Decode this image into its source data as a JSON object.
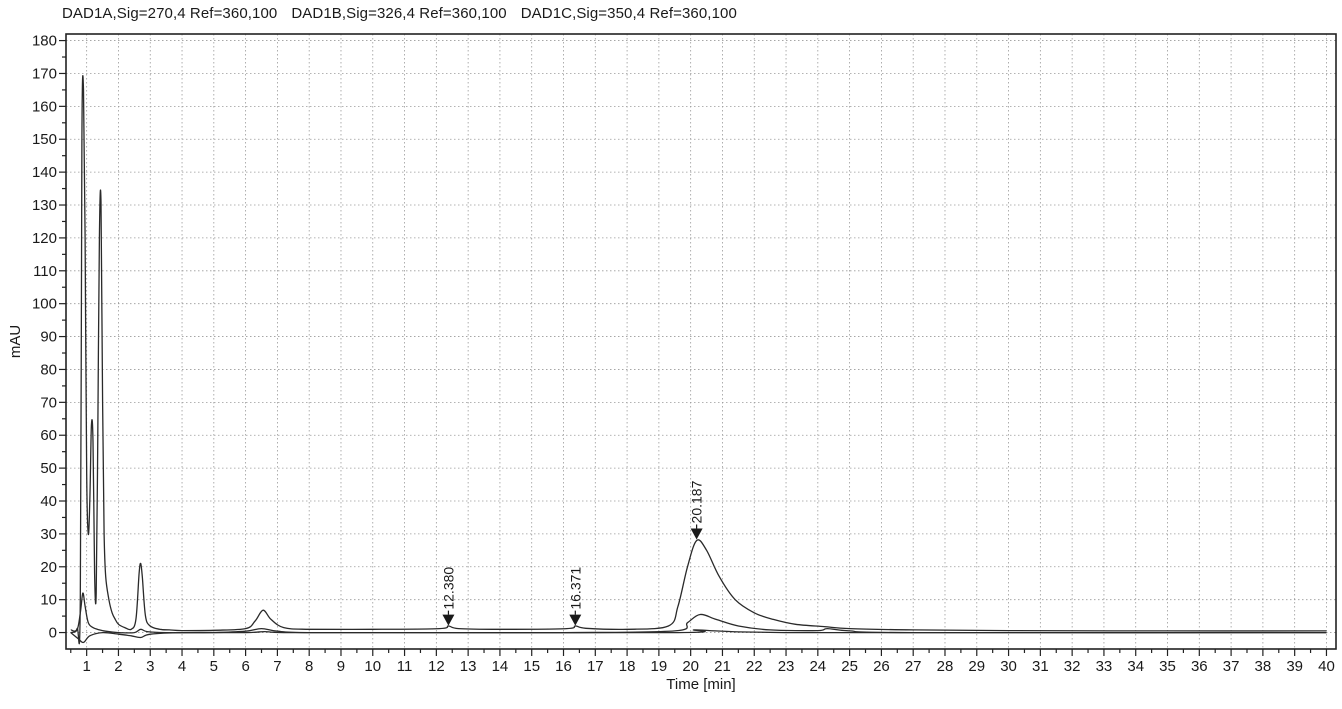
{
  "header": {
    "signals": [
      "DAD1A,Sig=270,4  Ref=360,100",
      "DAD1B,Sig=326,4  Ref=360,100",
      "DAD1C,Sig=350,4  Ref=360,100"
    ]
  },
  "chart_data": {
    "type": "line",
    "xlabel": "Time [min]",
    "ylabel": "mAU",
    "xlim": [
      0.35,
      40.3
    ],
    "ylim": [
      -5,
      182
    ],
    "x_ticks": [
      1,
      2,
      3,
      4,
      5,
      6,
      7,
      8,
      9,
      10,
      11,
      12,
      13,
      14,
      15,
      16,
      17,
      18,
      19,
      20,
      21,
      22,
      23,
      24,
      25,
      26,
      27,
      28,
      29,
      30,
      31,
      32,
      33,
      34,
      35,
      36,
      37,
      38,
      39,
      40
    ],
    "y_ticks": [
      0,
      10,
      20,
      30,
      40,
      50,
      60,
      70,
      80,
      90,
      100,
      110,
      120,
      130,
      140,
      150,
      160,
      170,
      180
    ],
    "grid": true,
    "series": [
      {
        "name": "DAD1A,Sig=270,4",
        "x": [
          0.5,
          0.7,
          0.8,
          0.85,
          0.9,
          0.95,
          1.0,
          1.05,
          1.1,
          1.15,
          1.2,
          1.25,
          1.3,
          1.35,
          1.4,
          1.45,
          1.5,
          1.55,
          1.6,
          1.7,
          1.8,
          1.9,
          2.0,
          2.2,
          2.4,
          2.55,
          2.65,
          2.7,
          2.75,
          2.85,
          3.0,
          3.3,
          3.6,
          4.0,
          5.0,
          6.0,
          6.3,
          6.55,
          6.8,
          7.2,
          8,
          10,
          12.1,
          12.38,
          12.7,
          14,
          16.1,
          16.37,
          16.7,
          18,
          19.3,
          19.6,
          19.9,
          20.19,
          20.5,
          20.9,
          21.4,
          22,
          22.6,
          23.3,
          24.2,
          25,
          27,
          30,
          35,
          40
        ],
        "y": [
          0.8,
          1.2,
          10,
          150,
          165,
          120,
          48,
          30,
          40,
          63,
          58,
          18,
          12,
          60,
          120,
          131,
          70,
          30,
          17,
          10,
          6,
          4,
          2.5,
          1.5,
          1,
          4,
          18,
          21,
          17,
          5,
          2,
          1,
          0.8,
          0.6,
          0.7,
          1.2,
          3.5,
          6.8,
          4,
          1.5,
          1,
          1,
          1.2,
          2,
          1.2,
          1,
          1.2,
          2,
          1.3,
          1,
          2,
          8,
          20,
          28,
          25,
          17,
          10,
          6,
          4,
          2.5,
          1.8,
          1.2,
          0.8,
          0.6,
          0.5,
          0.5
        ]
      },
      {
        "name": "DAD1B,Sig=326,4",
        "x": [
          0.5,
          0.7,
          0.8,
          0.88,
          0.95,
          1.05,
          1.2,
          1.4,
          1.6,
          2.0,
          2.5,
          2.7,
          2.9,
          3.5,
          5,
          6.0,
          6.5,
          7.0,
          8,
          12,
          16,
          19.5,
          19.9,
          20.3,
          20.8,
          21.5,
          22.5,
          24,
          24.3,
          25,
          27,
          40
        ],
        "y": [
          0,
          0.8,
          6,
          12,
          8,
          3,
          1.5,
          0.8,
          0.4,
          0,
          0,
          1,
          0.3,
          0,
          0,
          0.4,
          1.2,
          0.4,
          0,
          0,
          0,
          0.5,
          3,
          5.5,
          4,
          2,
          0.8,
          0.6,
          1.2,
          0.5,
          0,
          0
        ]
      },
      {
        "name": "DAD1C,Sig=350,4",
        "x": [
          0.5,
          0.75,
          0.9,
          1.1,
          1.5,
          2.0,
          2.4,
          2.7,
          3.0,
          4,
          6,
          6.6,
          7.2,
          10,
          19.6,
          20.1,
          20.6,
          21.5,
          23,
          25,
          40
        ],
        "y": [
          0,
          -2,
          -3,
          -1,
          0,
          -0.5,
          -1,
          -1.5,
          -0.5,
          0,
          0,
          0.3,
          0,
          0,
          0,
          0.8,
          0.6,
          0.2,
          0,
          0,
          0
        ]
      }
    ],
    "annotations": [
      {
        "label": "12.380",
        "x": 12.38,
        "y": 1.8
      },
      {
        "label": "16.371",
        "x": 16.371,
        "y": 1.8
      },
      {
        "label": "20.187",
        "x": 20.187,
        "y": 28
      }
    ]
  }
}
